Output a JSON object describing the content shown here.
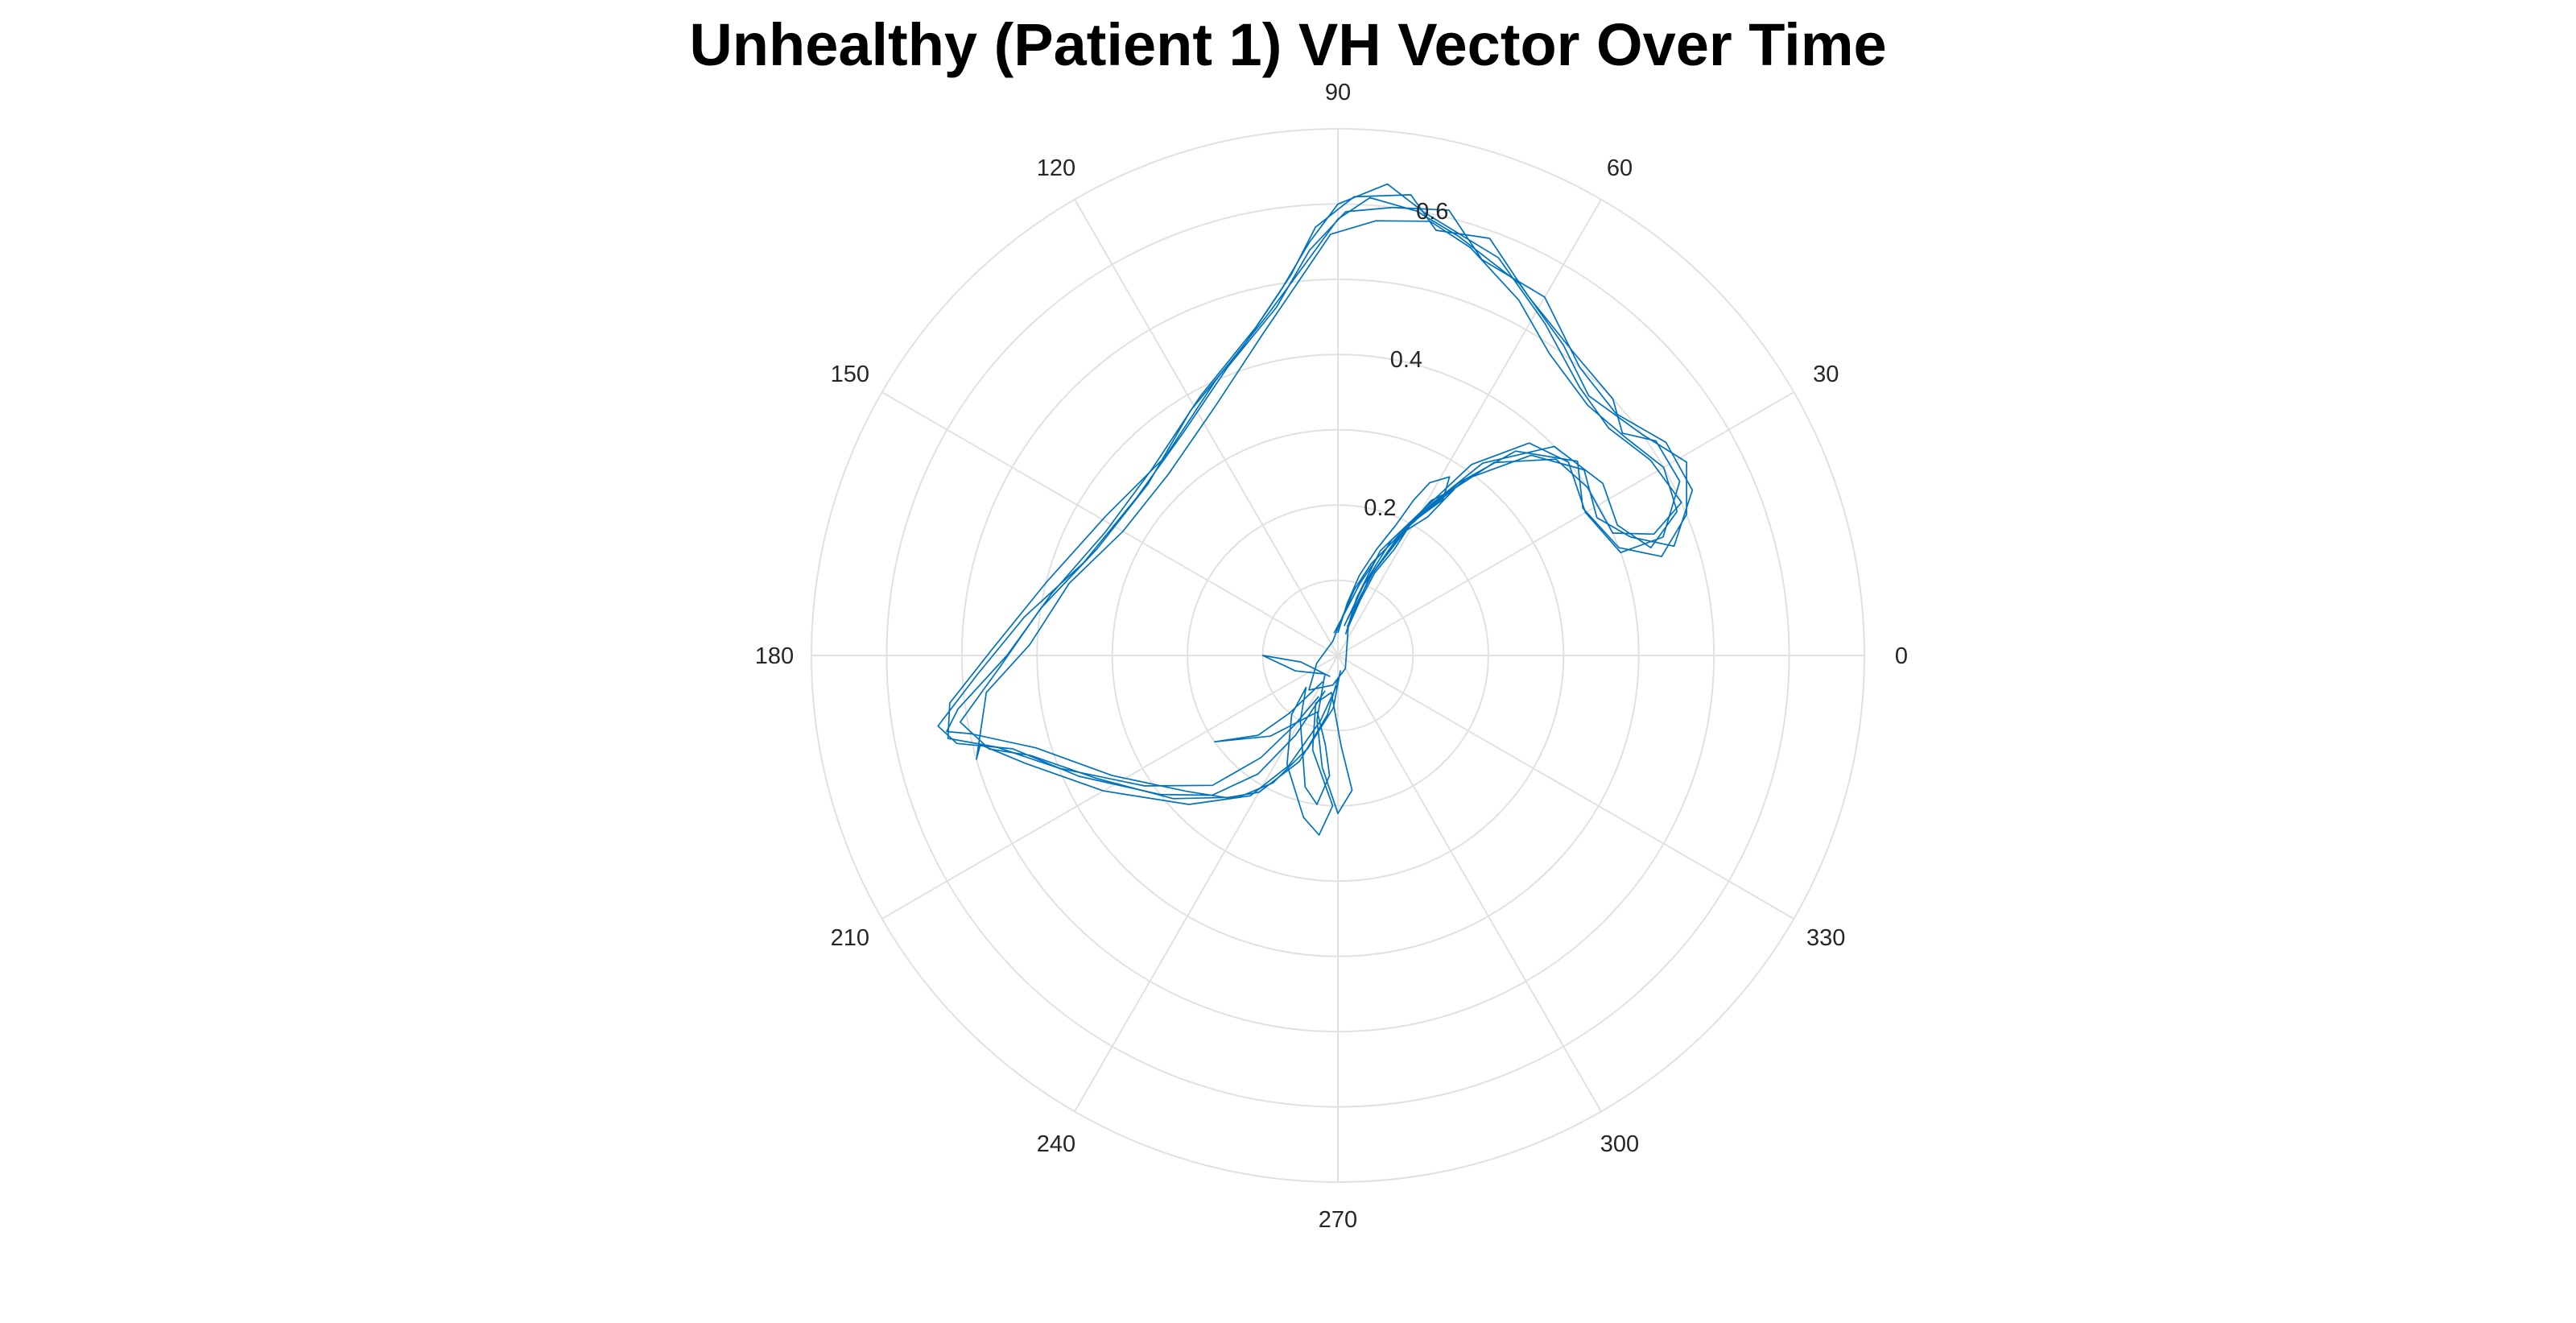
{
  "chart_data": {
    "type": "line",
    "subtype": "polar",
    "title": "Unhealthy (Patient 1) VH Vector Over Time",
    "angle_ticks": [
      "0",
      "30",
      "60",
      "90",
      "120",
      "150",
      "180",
      "210",
      "240",
      "270",
      "300",
      "330"
    ],
    "angle_tick_values_deg": [
      0,
      30,
      60,
      90,
      120,
      150,
      180,
      210,
      240,
      270,
      300,
      330
    ],
    "radius_ticks": [
      "0.2",
      "0.4",
      "0.6"
    ],
    "radius_tick_values": [
      0.2,
      0.4,
      0.6
    ],
    "rlim": [
      0,
      0.7
    ],
    "grid": true,
    "radius_label_angle_deg": 80,
    "series_color": "#0072BD",
    "series": [
      {
        "points_rtheta": [
          [
            0.03,
            270
          ],
          [
            0.08,
            260
          ],
          [
            0.15,
            250
          ],
          [
            0.21,
            240
          ],
          [
            0.24,
            232
          ],
          [
            0.27,
            222
          ],
          [
            0.34,
            208
          ],
          [
            0.42,
            197
          ],
          [
            0.5,
            192
          ],
          [
            0.53,
            191
          ],
          [
            0.51,
            188
          ],
          [
            0.44,
            180
          ],
          [
            0.39,
            168
          ],
          [
            0.35,
            152
          ],
          [
            0.35,
            135
          ],
          [
            0.39,
            118
          ],
          [
            0.45,
            104
          ],
          [
            0.51,
            97
          ],
          [
            0.57,
            93
          ],
          [
            0.61,
            88
          ],
          [
            0.62,
            81
          ],
          [
            0.58,
            77
          ],
          [
            0.59,
            70
          ],
          [
            0.54,
            62
          ],
          [
            0.51,
            52
          ],
          [
            0.5,
            43
          ],
          [
            0.48,
            38
          ],
          [
            0.51,
            34
          ],
          [
            0.51,
            27
          ],
          [
            0.46,
            20
          ],
          [
            0.4,
            20
          ],
          [
            0.38,
            30
          ],
          [
            0.4,
            40
          ],
          [
            0.38,
            48
          ],
          [
            0.31,
            55
          ],
          [
            0.22,
            60
          ],
          [
            0.15,
            68
          ],
          [
            0.08,
            72
          ],
          [
            0.03,
            70
          ]
        ]
      },
      {
        "points_rtheta": [
          [
            0.04,
            268
          ],
          [
            0.09,
            255
          ],
          [
            0.16,
            246
          ],
          [
            0.22,
            238
          ],
          [
            0.28,
            225
          ],
          [
            0.36,
            210
          ],
          [
            0.44,
            199
          ],
          [
            0.49,
            194
          ],
          [
            0.5,
            196
          ],
          [
            0.47,
            186
          ],
          [
            0.41,
            178
          ],
          [
            0.37,
            165
          ],
          [
            0.33,
            150
          ],
          [
            0.33,
            133
          ],
          [
            0.37,
            116
          ],
          [
            0.44,
            103
          ],
          [
            0.5,
            96
          ],
          [
            0.56,
            91
          ],
          [
            0.58,
            85
          ],
          [
            0.59,
            78
          ],
          [
            0.57,
            72
          ],
          [
            0.53,
            63
          ],
          [
            0.49,
            55
          ],
          [
            0.47,
            45
          ],
          [
            0.48,
            37
          ],
          [
            0.5,
            30
          ],
          [
            0.49,
            23
          ],
          [
            0.44,
            19
          ],
          [
            0.41,
            25
          ],
          [
            0.42,
            33
          ],
          [
            0.4,
            44
          ],
          [
            0.32,
            53
          ],
          [
            0.24,
            58
          ],
          [
            0.17,
            65
          ],
          [
            0.1,
            70
          ],
          [
            0.05,
            75
          ]
        ]
      },
      {
        "points_rtheta": [
          [
            0.05,
            250
          ],
          [
            0.12,
            242
          ],
          [
            0.19,
            236
          ],
          [
            0.25,
            228
          ],
          [
            0.3,
            218
          ],
          [
            0.38,
            205
          ],
          [
            0.45,
            196
          ],
          [
            0.52,
            193
          ],
          [
            0.54,
            190
          ],
          [
            0.48,
            183
          ],
          [
            0.42,
            173
          ],
          [
            0.36,
            160
          ],
          [
            0.34,
            142
          ],
          [
            0.36,
            125
          ],
          [
            0.41,
            111
          ],
          [
            0.47,
            100
          ],
          [
            0.54,
            94
          ],
          [
            0.59,
            89
          ],
          [
            0.6,
            83
          ],
          [
            0.61,
            76
          ],
          [
            0.56,
            70
          ],
          [
            0.55,
            60
          ],
          [
            0.5,
            50
          ],
          [
            0.49,
            41
          ],
          [
            0.52,
            33
          ],
          [
            0.52,
            25
          ],
          [
            0.47,
            18
          ],
          [
            0.42,
            22
          ],
          [
            0.39,
            28
          ],
          [
            0.41,
            37
          ],
          [
            0.37,
            46
          ],
          [
            0.29,
            54
          ],
          [
            0.2,
            61
          ],
          [
            0.12,
            67
          ],
          [
            0.06,
            72
          ]
        ]
      },
      {
        "points_rtheta": [
          [
            0.02,
            280
          ],
          [
            0.07,
            265
          ],
          [
            0.13,
            252
          ],
          [
            0.19,
            243
          ],
          [
            0.23,
            235
          ],
          [
            0.29,
            221
          ],
          [
            0.36,
            207
          ],
          [
            0.43,
            198
          ],
          [
            0.48,
            195
          ],
          [
            0.51,
            190
          ],
          [
            0.45,
            182
          ],
          [
            0.4,
            171
          ],
          [
            0.35,
            156
          ],
          [
            0.34,
            138
          ],
          [
            0.38,
            121
          ],
          [
            0.43,
            107
          ],
          [
            0.49,
            99
          ],
          [
            0.55,
            94
          ],
          [
            0.6,
            90
          ],
          [
            0.63,
            84
          ],
          [
            0.6,
            79
          ],
          [
            0.57,
            68
          ],
          [
            0.52,
            58
          ],
          [
            0.48,
            48
          ],
          [
            0.47,
            40
          ],
          [
            0.49,
            32
          ],
          [
            0.5,
            24
          ],
          [
            0.45,
            21
          ],
          [
            0.4,
            24
          ],
          [
            0.4,
            34
          ],
          [
            0.39,
            42
          ],
          [
            0.33,
            51
          ],
          [
            0.25,
            57
          ],
          [
            0.18,
            63
          ],
          [
            0.11,
            68
          ],
          [
            0.04,
            72
          ]
        ]
      },
      {
        "points_rtheta": [
          [
            0.06,
            245
          ],
          [
            0.11,
            238
          ],
          [
            0.17,
            233
          ],
          [
            0.24,
            226
          ],
          [
            0.31,
            214
          ],
          [
            0.4,
            202
          ],
          [
            0.47,
            195
          ],
          [
            0.53,
            192
          ],
          [
            0.52,
            187
          ],
          [
            0.46,
            179
          ],
          [
            0.4,
            166
          ],
          [
            0.36,
            149
          ],
          [
            0.35,
            131
          ],
          [
            0.4,
            114
          ],
          [
            0.46,
            102
          ],
          [
            0.52,
            95
          ],
          [
            0.58,
            90
          ],
          [
            0.61,
            86
          ],
          [
            0.6,
            80
          ],
          [
            0.58,
            74
          ],
          [
            0.55,
            64
          ],
          [
            0.51,
            54
          ],
          [
            0.48,
            46
          ],
          [
            0.5,
            36
          ],
          [
            0.53,
            29
          ],
          [
            0.5,
            22
          ],
          [
            0.45,
            17
          ],
          [
            0.4,
            21
          ],
          [
            0.38,
            31
          ],
          [
            0.41,
            39
          ],
          [
            0.36,
            49
          ],
          [
            0.28,
            55
          ],
          [
            0.19,
            62
          ],
          [
            0.1,
            70
          ],
          [
            0.04,
            78
          ]
        ]
      },
      {
        "points_rtheta": [
          [
            0.04,
            240
          ],
          [
            0.1,
            230
          ],
          [
            0.15,
            225
          ],
          [
            0.2,
            215
          ],
          [
            0.14,
            230
          ],
          [
            0.08,
            250
          ],
          [
            0.12,
            262
          ],
          [
            0.16,
            266
          ],
          [
            0.2,
            262
          ],
          [
            0.18,
            256
          ],
          [
            0.1,
            240
          ],
          [
            0.06,
            225
          ],
          [
            0.1,
            232
          ],
          [
            0.16,
            245
          ],
          [
            0.22,
            258
          ],
          [
            0.24,
            264
          ],
          [
            0.2,
            268
          ],
          [
            0.13,
            255
          ],
          [
            0.07,
            245
          ],
          [
            0.05,
            260
          ],
          [
            0.12,
            272
          ],
          [
            0.18,
            276
          ],
          [
            0.21,
            270
          ],
          [
            0.15,
            262
          ],
          [
            0.09,
            252
          ],
          [
            0.03,
            235
          ],
          [
            0.06,
            200
          ],
          [
            0.1,
            180
          ],
          [
            0.05,
            190
          ],
          [
            0.03,
            250
          ]
        ]
      },
      {
        "points_rtheta": [
          [
            0.03,
            90
          ],
          [
            0.07,
            80
          ],
          [
            0.11,
            75
          ],
          [
            0.15,
            70
          ],
          [
            0.19,
            66
          ],
          [
            0.23,
            64
          ],
          [
            0.26,
            62
          ],
          [
            0.28,
            58
          ],
          [
            0.25,
            56
          ],
          [
            0.21,
            60
          ],
          [
            0.17,
            64
          ],
          [
            0.13,
            70
          ],
          [
            0.09,
            76
          ],
          [
            0.05,
            84
          ],
          [
            0.02,
            110
          ],
          [
            0.03,
            200
          ],
          [
            0.06,
            230
          ],
          [
            0.04,
            260
          ],
          [
            0.02,
            300
          ],
          [
            0.04,
            70
          ],
          [
            0.08,
            68
          ],
          [
            0.12,
            66
          ],
          [
            0.16,
            62
          ],
          [
            0.2,
            61
          ],
          [
            0.24,
            59
          ],
          [
            0.27,
            55
          ],
          [
            0.22,
            57
          ],
          [
            0.18,
            63
          ],
          [
            0.14,
            68
          ],
          [
            0.1,
            73
          ],
          [
            0.06,
            80
          ],
          [
            0.03,
            100
          ]
        ]
      }
    ]
  }
}
